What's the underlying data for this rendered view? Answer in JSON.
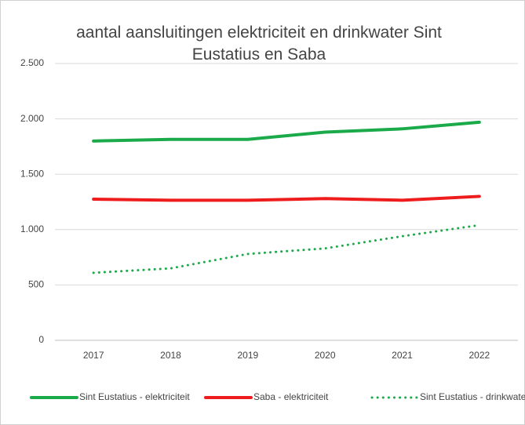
{
  "chart_data": {
    "type": "line",
    "title": "aantal aansluitingen elektriciteit en drinkwater Sint Eustatius en Saba",
    "categories": [
      "2017",
      "2018",
      "2019",
      "2020",
      "2021",
      "2022"
    ],
    "series": [
      {
        "name": "Sint Eustatius - elektriciteit",
        "color": "#1aaa4a",
        "style": "solid",
        "values": [
          1800,
          1815,
          1815,
          1880,
          1910,
          1970
        ]
      },
      {
        "name": "Saba - elektriciteit",
        "color": "#ee1c1c",
        "style": "solid",
        "values": [
          1275,
          1265,
          1265,
          1280,
          1265,
          1300
        ]
      },
      {
        "name": "Sint Eustatius - drinkwater",
        "color": "#1aaa4a",
        "style": "dotted",
        "values": [
          610,
          650,
          780,
          830,
          940,
          1040
        ]
      }
    ],
    "ylim": [
      0,
      2500
    ],
    "yticks": [
      0,
      500,
      {
        "value": 1000,
        "label": "1.000"
      },
      {
        "value": 1500,
        "label": "1.500"
      },
      {
        "value": 2000,
        "label": "2.000"
      },
      {
        "value": 2500,
        "label": "2.500"
      }
    ],
    "grid": true,
    "legend": "bottom"
  }
}
